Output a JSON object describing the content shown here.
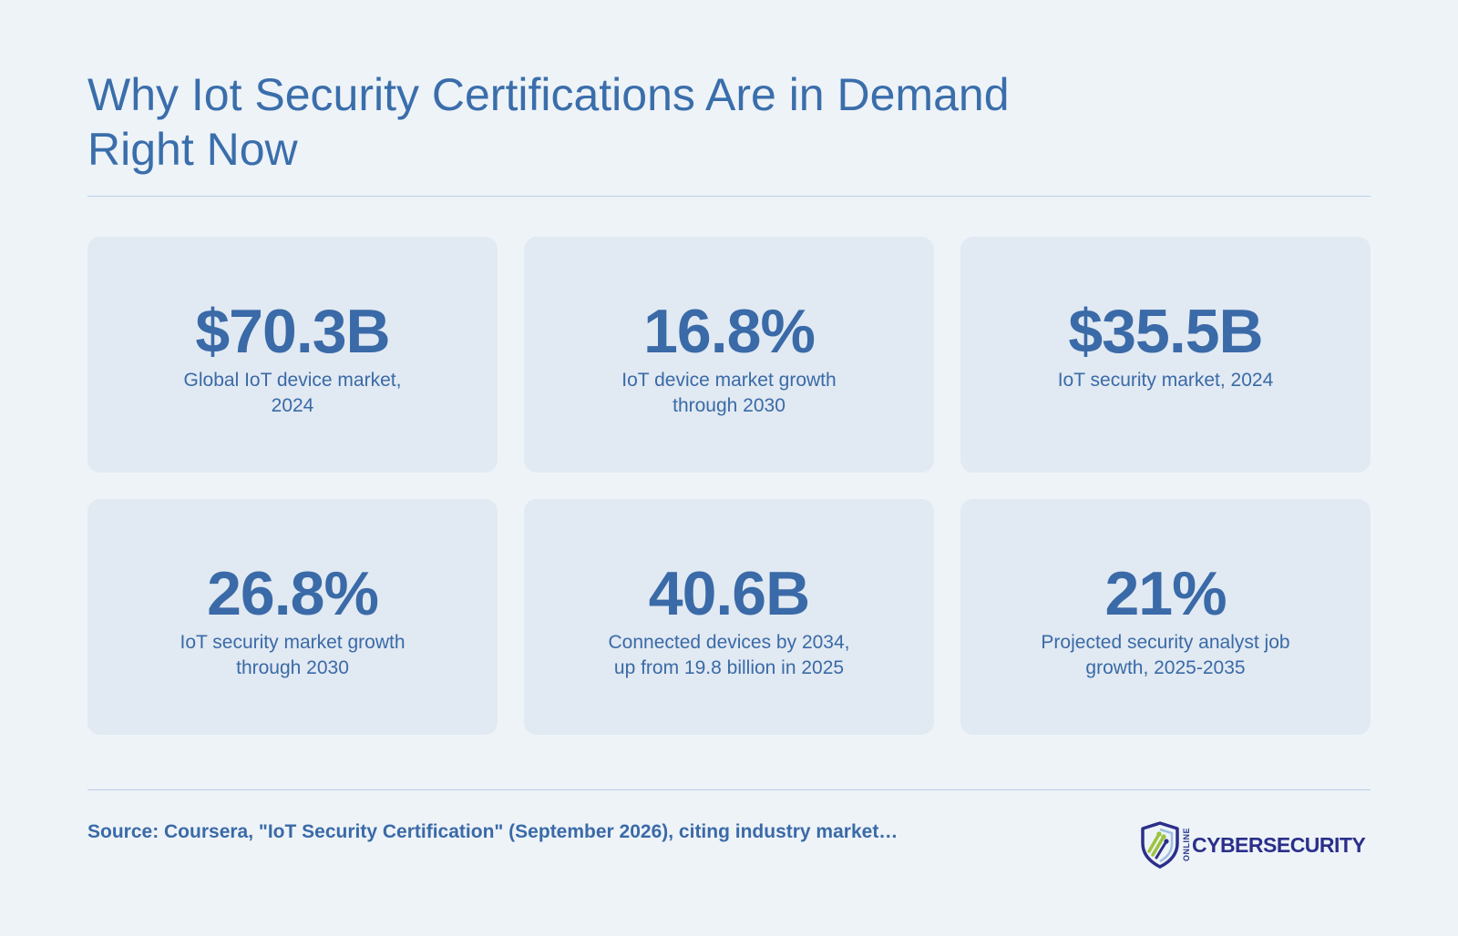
{
  "header": {
    "title": "Why Iot Security Certifications Are in Demand Right Now"
  },
  "stats": [
    {
      "value": "$70.3B",
      "label": "Global IoT device market, 2024"
    },
    {
      "value": "16.8%",
      "label": "IoT device market growth through 2030"
    },
    {
      "value": "$35.5B",
      "label": "IoT security market, 2024"
    },
    {
      "value": "26.8%",
      "label": "IoT security market growth through 2030"
    },
    {
      "value": "40.6B",
      "label": "Connected devices by 2034, up from 19.8 billion in 2025"
    },
    {
      "value": "21%",
      "label": "Projected security analyst job growth, 2025-2035"
    }
  ],
  "footer": {
    "source": "Source: Coursera, \"IoT Security Certification\" (September 2026), citing industry market…",
    "logo_small": "ONLINE",
    "logo_main": "CYBERSECURITY"
  },
  "colors": {
    "background": "#eef3f8",
    "card": "#e1e9f2",
    "accent": "#3a6aa7",
    "logo_navy": "#2b2f8a",
    "logo_green": "#9ac43c"
  }
}
